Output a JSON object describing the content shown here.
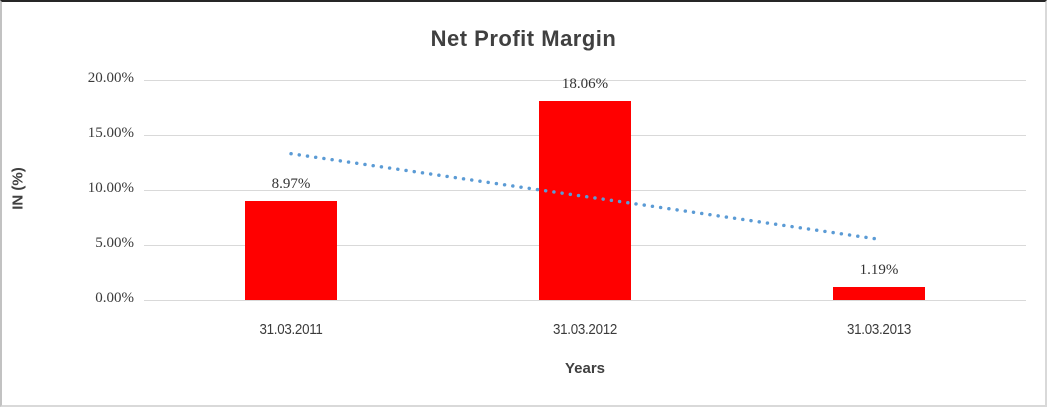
{
  "chart_data": {
    "type": "bar",
    "title": "Net Profit Margin",
    "categories": [
      "31.03.2011",
      "31.03.2012",
      "31.03.2013"
    ],
    "values": [
      8.97,
      18.06,
      1.19
    ],
    "data_labels": [
      "8.97%",
      "18.06%",
      "1.19%"
    ],
    "xlabel": "Years",
    "ylabel": "IN (%)",
    "ylim": [
      0,
      20
    ],
    "ytick_step": 5,
    "ytick_labels": [
      "0.00%",
      "5.00%",
      "10.00%",
      "15.00%",
      "20.00%"
    ],
    "grid": true,
    "legend": "none",
    "bar_color": "#ff0000",
    "gridline_color": "#d9d9d9",
    "text_color": "#404040",
    "trendline": {
      "type": "linear",
      "style": "dotted",
      "color": "#5b9bd5",
      "start_value": 13.3,
      "end_value": 5.52
    }
  }
}
